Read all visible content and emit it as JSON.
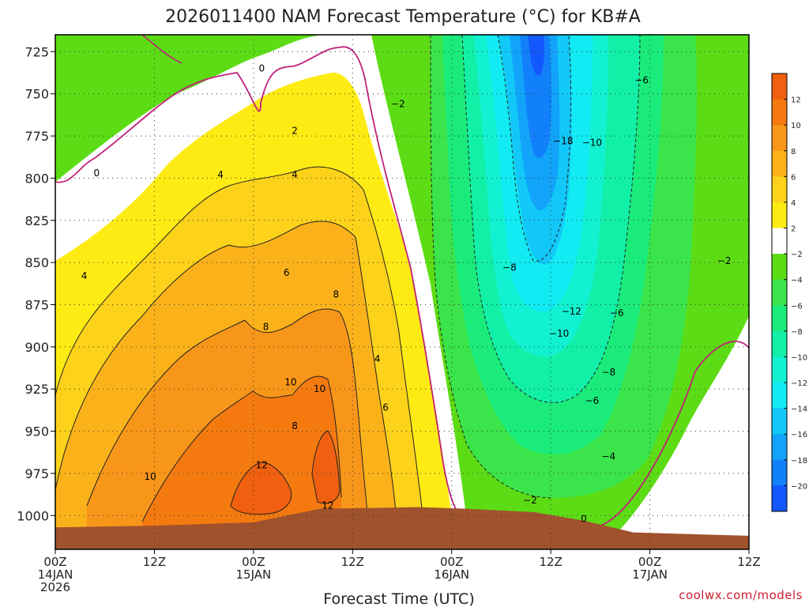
{
  "chart_data": {
    "type": "heatmap",
    "title": "2026011400 NAM Forecast Temperature (°C) for KB#A",
    "xlabel": "Forecast Time (UTC)",
    "ylabel": "",
    "x_unit": "forecast hours",
    "xlim": [
      0,
      84
    ],
    "ylim": [
      1020,
      715
    ],
    "y_ticks": [
      725,
      750,
      775,
      800,
      825,
      850,
      875,
      900,
      925,
      950,
      975,
      1000
    ],
    "x_ticks": [
      {
        "hour": 0,
        "lines": [
          "00Z",
          "14JAN",
          "2026"
        ]
      },
      {
        "hour": 12,
        "lines": [
          "12Z"
        ]
      },
      {
        "hour": 24,
        "lines": [
          "00Z",
          "15JAN"
        ]
      },
      {
        "hour": 36,
        "lines": [
          "12Z"
        ]
      },
      {
        "hour": 48,
        "lines": [
          "00Z",
          "16JAN"
        ]
      },
      {
        "hour": 60,
        "lines": [
          "12Z"
        ]
      },
      {
        "hour": 72,
        "lines": [
          "00Z",
          "17JAN"
        ]
      },
      {
        "hour": 84,
        "lines": [
          "12Z"
        ]
      }
    ],
    "colorbar": {
      "ticks": [
        12,
        10,
        8,
        6,
        4,
        2,
        -2,
        -4,
        -6,
        -8,
        -10,
        -12,
        -14,
        -16,
        -18,
        -20
      ],
      "bands": [
        {
          "range": "12 to 14",
          "color": "#f06010"
        },
        {
          "range": "10 to 12",
          "color": "#f47a10"
        },
        {
          "range": "8 to 10",
          "color": "#f8961a"
        },
        {
          "range": "6 to 8",
          "color": "#fbb21a"
        },
        {
          "range": "4 to 6",
          "color": "#fdd21a"
        },
        {
          "range": "2 to 4",
          "color": "#ffeb14"
        },
        {
          "range": "-2 to 2",
          "color": "#ffffff"
        },
        {
          "range": "-4 to -2",
          "color": "#5cdc14"
        },
        {
          "range": "-6 to -4",
          "color": "#3ae44a"
        },
        {
          "range": "-8 to -6",
          "color": "#1aeb7a"
        },
        {
          "range": "-10 to -8",
          "color": "#12f0a8"
        },
        {
          "range": "-12 to -10",
          "color": "#12f2d2"
        },
        {
          "range": "-14 to -12",
          "color": "#12eaf4"
        },
        {
          "range": "-16 to -14",
          "color": "#12c8f8"
        },
        {
          "range": "-18 to -16",
          "color": "#12a4fa"
        },
        {
          "range": "-20 to -18",
          "color": "#1280fb"
        },
        {
          "range": "< -20",
          "color": "#1258fd"
        }
      ]
    },
    "terrain_color": "#a0522d",
    "surface_pressure_profile": [
      {
        "hour": 0,
        "p": 1007
      },
      {
        "hour": 12,
        "p": 1006
      },
      {
        "hour": 24,
        "p": 1004
      },
      {
        "hour": 32,
        "p": 996
      },
      {
        "hour": 44,
        "p": 995
      },
      {
        "hour": 50,
        "p": 996
      },
      {
        "hour": 58,
        "p": 998
      },
      {
        "hour": 64,
        "p": 1003
      },
      {
        "hour": 70,
        "p": 1010
      },
      {
        "hour": 84,
        "p": 1012
      }
    ],
    "freezing_line_color": "#c0207a",
    "contour_labels": [
      {
        "hour": 25.0,
        "p": 735,
        "text": "0"
      },
      {
        "hour": 5.0,
        "p": 797,
        "text": "0"
      },
      {
        "hour": 64.0,
        "p": 1002,
        "text": "0"
      },
      {
        "hour": 41.5,
        "p": 756,
        "text": "−2"
      },
      {
        "hour": 57.5,
        "p": 991,
        "text": "−2"
      },
      {
        "hour": 81.0,
        "p": 849,
        "text": "−2"
      },
      {
        "hour": 29.0,
        "p": 772,
        "text": "2"
      },
      {
        "hour": 20.0,
        "p": 798,
        "text": "4"
      },
      {
        "hour": 29.0,
        "p": 798,
        "text": "4"
      },
      {
        "hour": 3.5,
        "p": 858,
        "text": "4"
      },
      {
        "hour": 39.0,
        "p": 907,
        "text": "4"
      },
      {
        "hour": 28.0,
        "p": 856,
        "text": "6"
      },
      {
        "hour": 40.0,
        "p": 936,
        "text": "6"
      },
      {
        "hour": 25.5,
        "p": 888,
        "text": "8"
      },
      {
        "hour": 34.0,
        "p": 869,
        "text": "8"
      },
      {
        "hour": 29.0,
        "p": 947,
        "text": "8"
      },
      {
        "hour": 28.5,
        "p": 921,
        "text": "10"
      },
      {
        "hour": 32.0,
        "p": 925,
        "text": "10"
      },
      {
        "hour": 11.5,
        "p": 977,
        "text": "10"
      },
      {
        "hour": 25.0,
        "p": 970,
        "text": "12"
      },
      {
        "hour": 33.0,
        "p": 994,
        "text": "12"
      },
      {
        "hour": 55.0,
        "p": 853,
        "text": "−8"
      },
      {
        "hour": 71.0,
        "p": 742,
        "text": "−6"
      },
      {
        "hour": 68.0,
        "p": 880,
        "text": "−6"
      },
      {
        "hour": 65.0,
        "p": 779,
        "text": "−10"
      },
      {
        "hour": 61.5,
        "p": 778,
        "text": "−18"
      },
      {
        "hour": 62.5,
        "p": 879,
        "text": "−12"
      },
      {
        "hour": 61.0,
        "p": 892,
        "text": "−10"
      },
      {
        "hour": 67.0,
        "p": 915,
        "text": "−8"
      },
      {
        "hour": 65.0,
        "p": 932,
        "text": "−6"
      },
      {
        "hour": 67.0,
        "p": 965,
        "text": "−4"
      }
    ]
  },
  "credit": "coolwx.com/models"
}
